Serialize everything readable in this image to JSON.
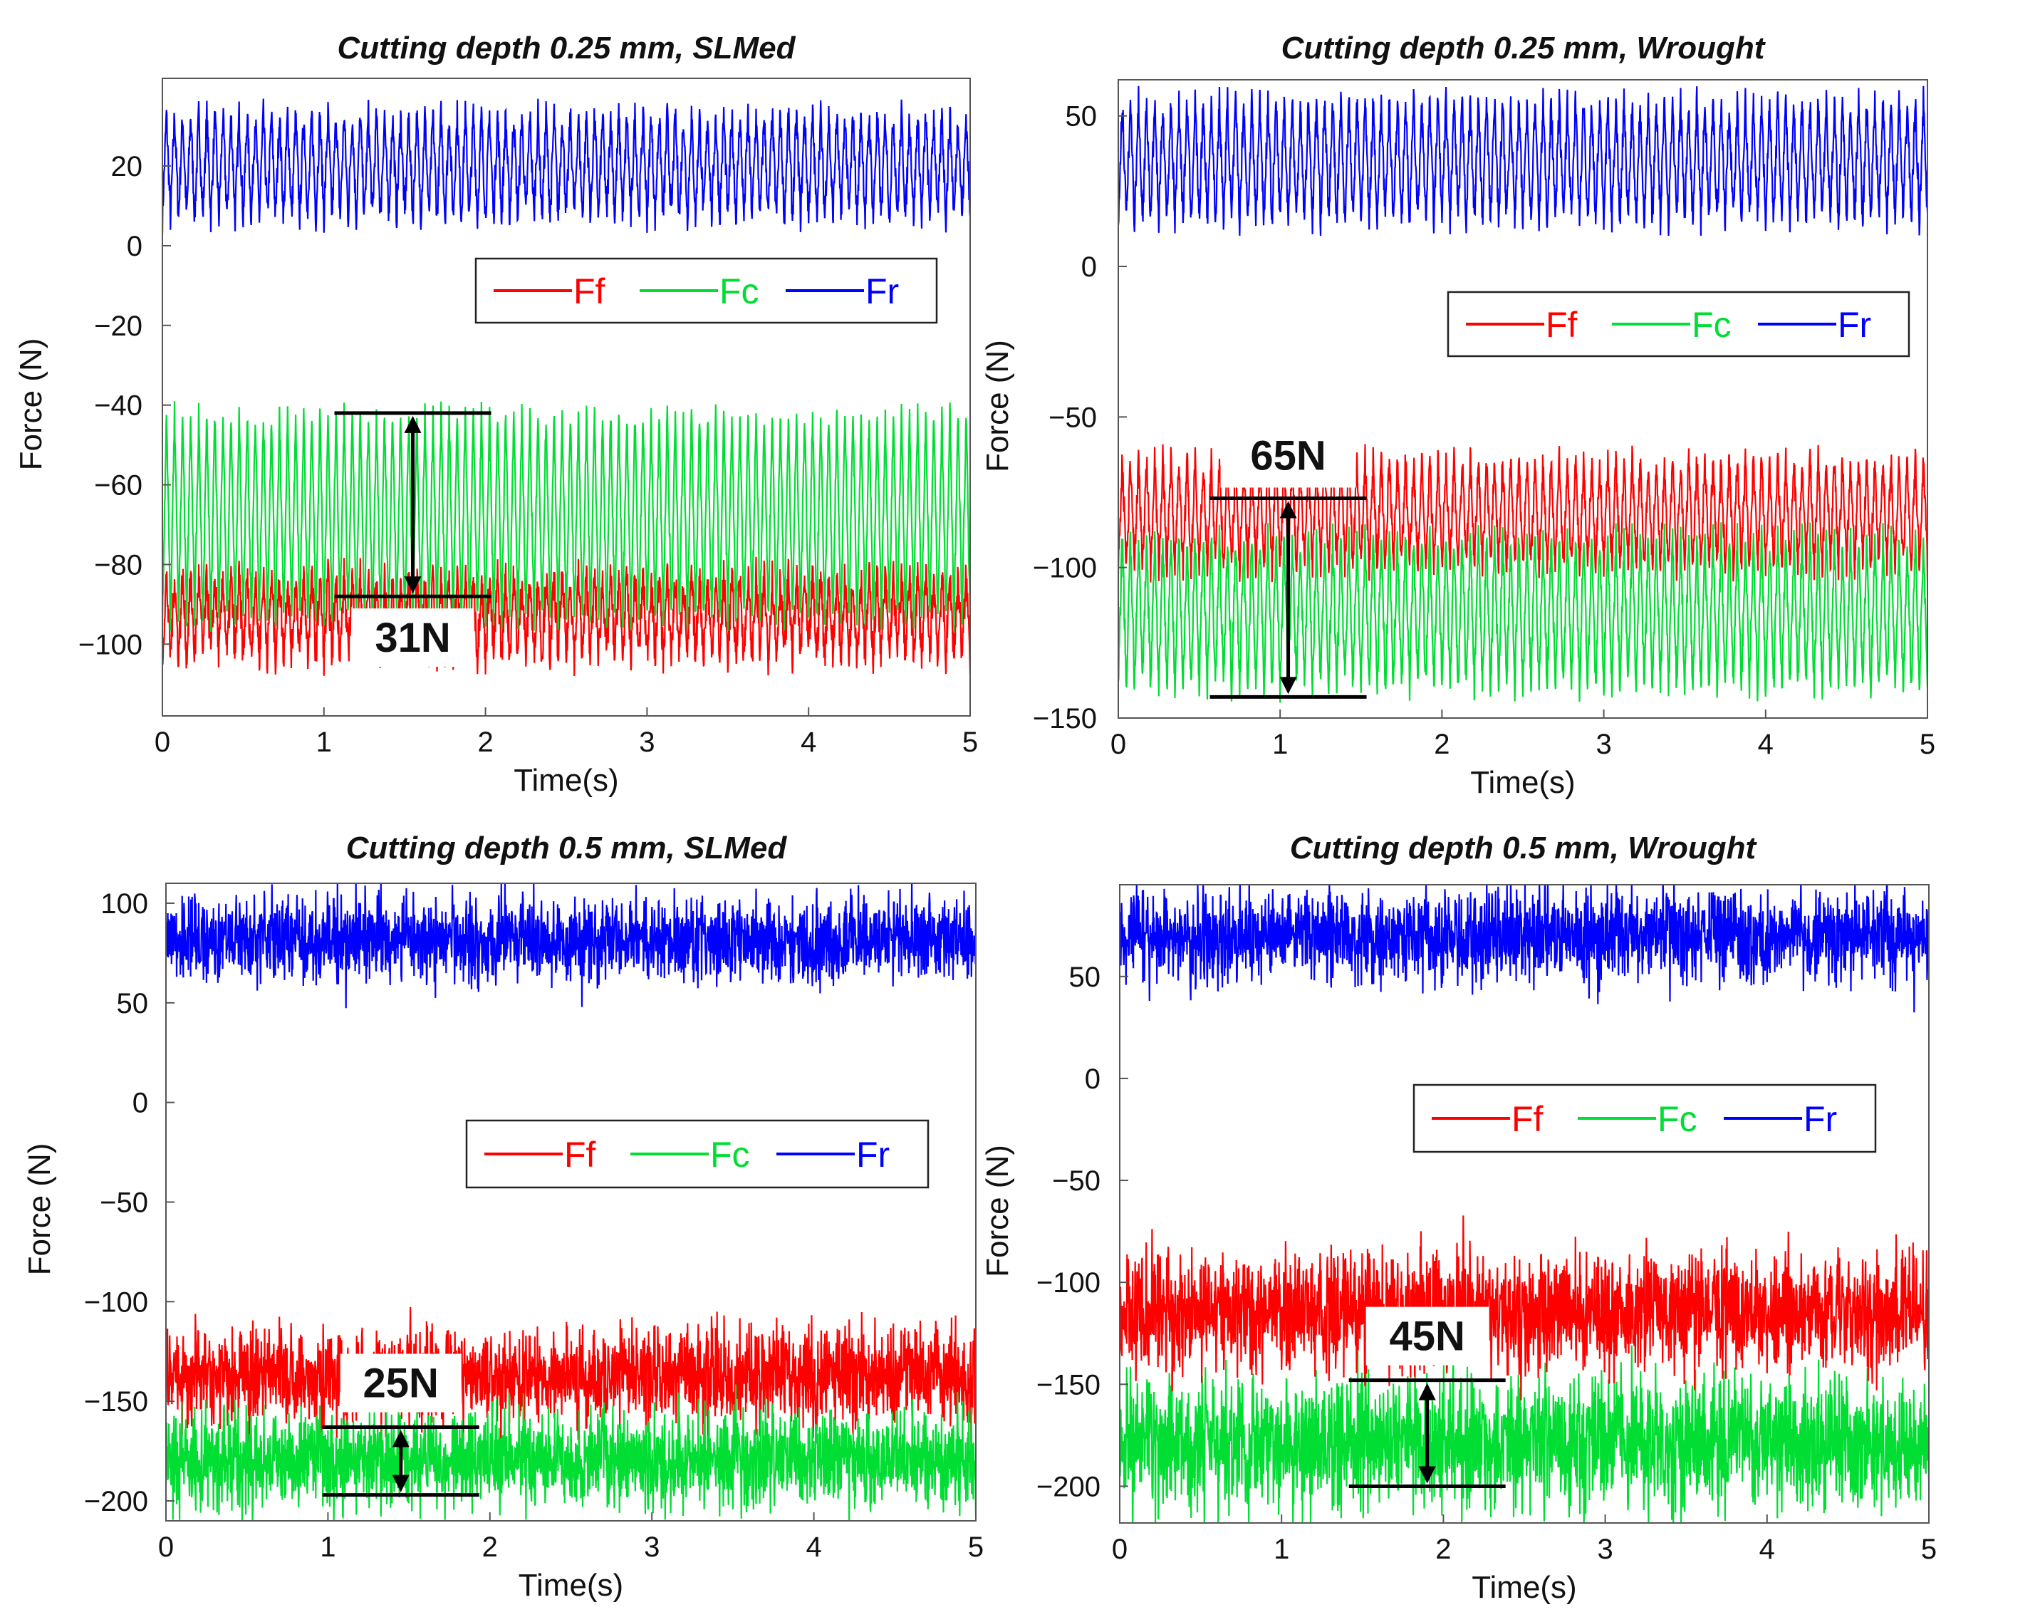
{
  "figure": "Cutting force signals for SLMed and wrought samples",
  "legend": [
    {
      "key": "Ff",
      "label": "Ff",
      "color": "#ff0000"
    },
    {
      "key": "Fc",
      "label": "Fc",
      "color": "#00dd33"
    },
    {
      "key": "Fr",
      "label": "Fr",
      "color": "#0000ff"
    }
  ],
  "chart_data": [
    {
      "type": "line",
      "title": "Cutting depth 0.25 mm, SLMed",
      "xlabel": "Time(s)",
      "ylabel": "Force (N)",
      "xlim": [
        0,
        5
      ],
      "ylim": [
        -118,
        42
      ],
      "xticks": [
        0,
        1,
        2,
        3,
        4,
        5
      ],
      "yticks": [
        20,
        0,
        -20,
        -40,
        -60,
        -80,
        -100
      ],
      "ytick_labels": [
        "20",
        "0",
        "−20",
        "−40",
        "−60",
        "−80",
        "−100"
      ],
      "periodic": true,
      "series": [
        {
          "name": "Fr",
          "mean": 20,
          "amplitude": 13,
          "noise": 4
        },
        {
          "name": "Ff",
          "mean": -93,
          "amplitude": 10,
          "noise": 5
        },
        {
          "name": "Fc",
          "mean": -68,
          "amplitude": 26,
          "noise": 3
        }
      ],
      "annotation": {
        "label": "31N",
        "value": 31,
        "y_top": -42,
        "y_bottom": -88,
        "x": 1.55
      }
    },
    {
      "type": "line",
      "title": "Cutting depth 0.25 mm, Wrought",
      "xlabel": "Time(s)",
      "ylabel": "Force (N)",
      "xlim": [
        0,
        5
      ],
      "ylim": [
        -150,
        62
      ],
      "xticks": [
        0,
        1,
        2,
        3,
        4,
        5
      ],
      "yticks": [
        50,
        0,
        -50,
        -100,
        -150
      ],
      "ytick_labels": [
        "50",
        "0",
        "−50",
        "−100",
        "−150"
      ],
      "periodic": true,
      "series": [
        {
          "name": "Fr",
          "mean": 35,
          "amplitude": 20,
          "noise": 5
        },
        {
          "name": "Fc",
          "mean": -115,
          "amplitude": 25,
          "noise": 5
        },
        {
          "name": "Ff",
          "mean": -82,
          "amplitude": 18,
          "noise": 5
        }
      ],
      "annotation": {
        "label": "65N",
        "value": 65,
        "y_top": -77,
        "y_bottom": -143,
        "x": 1.05
      }
    },
    {
      "type": "line",
      "title": "Cutting depth 0.5 mm, SLMed",
      "xlabel": "Time(s)",
      "ylabel": "Force (N)",
      "xlim": [
        0,
        5
      ],
      "ylim": [
        -210,
        110
      ],
      "xticks": [
        0,
        1,
        2,
        3,
        4,
        5
      ],
      "yticks": [
        100,
        50,
        0,
        -50,
        -100,
        -150,
        -200
      ],
      "ytick_labels": [
        "100",
        "50",
        "0",
        "−50",
        "−100",
        "−150",
        "−200"
      ],
      "periodic": false,
      "series": [
        {
          "name": "Fr",
          "mean": 82,
          "amplitude": 0,
          "noise": 13
        },
        {
          "name": "Ff",
          "mean": -137,
          "amplitude": 0,
          "noise": 15
        },
        {
          "name": "Fc",
          "mean": -179,
          "amplitude": 0,
          "noise": 15
        }
      ],
      "annotation": {
        "label": "25N",
        "value": 25,
        "y_top": -163,
        "y_bottom": -197,
        "x": 1.45
      }
    },
    {
      "type": "line",
      "title": "Cutting depth 0.5 mm, Wrought",
      "xlabel": "Time(s)",
      "ylabel": "Force (N)",
      "xlim": [
        0,
        5
      ],
      "ylim": [
        -218,
        95
      ],
      "xticks": [
        0,
        1,
        2,
        3,
        4,
        5
      ],
      "yticks": [
        50,
        0,
        -50,
        -100,
        -150,
        -200
      ],
      "ytick_labels": [
        "50",
        "0",
        "−50",
        "−100",
        "−150",
        "−200"
      ],
      "periodic": false,
      "series": [
        {
          "name": "Fr",
          "mean": 70,
          "amplitude": 0,
          "noise": 14
        },
        {
          "name": "Fc",
          "mean": -178,
          "amplitude": 0,
          "noise": 20
        },
        {
          "name": "Ff",
          "mean": -114,
          "amplitude": 0,
          "noise": 18
        }
      ],
      "annotation": {
        "label": "45N",
        "value": 45,
        "y_top": -148,
        "y_bottom": -200,
        "x": 1.9
      }
    }
  ]
}
